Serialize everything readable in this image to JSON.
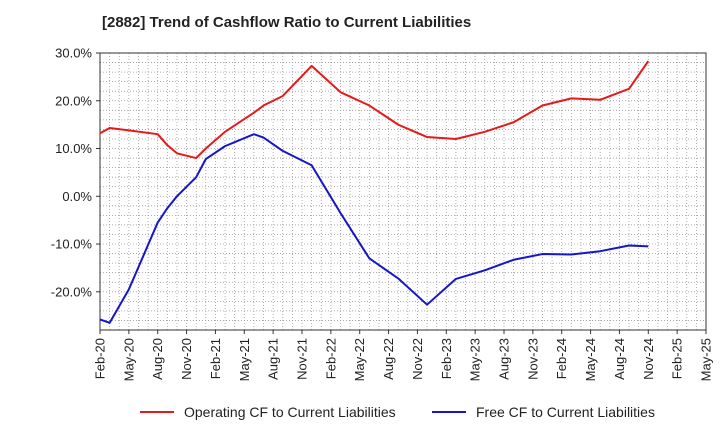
{
  "chart_data": {
    "type": "line",
    "title": "[2882]  Trend of Cashflow Ratio to Current Liabilities",
    "xlabel": "",
    "ylabel": "",
    "ylim": [
      -28,
      30
    ],
    "yticks": [
      30,
      20,
      10,
      0,
      -10,
      -20
    ],
    "ytick_labels": [
      "30.0%",
      "20.0%",
      "10.0%",
      "0.0%",
      "-10.0%",
      "-20.0%"
    ],
    "xtick_labels": [
      "Feb-20",
      "May-20",
      "Aug-20",
      "Nov-20",
      "Feb-21",
      "May-21",
      "Aug-21",
      "Nov-21",
      "Feb-22",
      "May-22",
      "Aug-22",
      "Nov-22",
      "Feb-23",
      "May-23",
      "Aug-23",
      "Nov-23",
      "Feb-24",
      "May-24",
      "Aug-24",
      "Nov-24",
      "Feb-25",
      "May-25"
    ],
    "grid": true,
    "legend_position": "bottom",
    "series": [
      {
        "name": "Operating CF to Current Liabilities",
        "color": "#e41a1c",
        "points": [
          [
            "Feb-20",
            13.2
          ],
          [
            "Mar-20",
            14.3
          ],
          [
            "May-20",
            13.8
          ],
          [
            "Aug-20",
            13.0
          ],
          [
            "Sep-20",
            10.7
          ],
          [
            "Oct-20",
            9.0
          ],
          [
            "Dec-20",
            8.0
          ],
          [
            "Jan-21",
            10.0
          ],
          [
            "Mar-21",
            13.5
          ],
          [
            "Jun-21",
            17.5
          ],
          [
            "Jul-21",
            19.0
          ],
          [
            "Sep-21",
            21.0
          ],
          [
            "Dec-21",
            27.3
          ],
          [
            "Mar-22",
            21.8
          ],
          [
            "Jun-22",
            19.0
          ],
          [
            "Sep-22",
            15.0
          ],
          [
            "Dec-22",
            12.4
          ],
          [
            "Mar-23",
            12.0
          ],
          [
            "Jun-23",
            13.5
          ],
          [
            "Sep-23",
            15.5
          ],
          [
            "Dec-23",
            19.0
          ],
          [
            "Mar-24",
            20.5
          ],
          [
            "Jun-24",
            20.2
          ],
          [
            "Sep-24",
            22.5
          ],
          [
            "Nov-24",
            28.3
          ]
        ]
      },
      {
        "name": "Free CF to Current Liabilities",
        "color": "#1515cc",
        "points": [
          [
            "Feb-20",
            -25.8
          ],
          [
            "Mar-20",
            -26.5
          ],
          [
            "May-20",
            -19.5
          ],
          [
            "Aug-20",
            -5.5
          ],
          [
            "Sep-20",
            -2.5
          ],
          [
            "Oct-20",
            0.0
          ],
          [
            "Dec-20",
            4.0
          ],
          [
            "Jan-21",
            7.8
          ],
          [
            "Mar-21",
            10.5
          ],
          [
            "Jun-21",
            13.0
          ],
          [
            "Jul-21",
            12.3
          ],
          [
            "Sep-21",
            9.5
          ],
          [
            "Dec-21",
            6.5
          ],
          [
            "Mar-22",
            -3.5
          ],
          [
            "Jun-22",
            -13.0
          ],
          [
            "Sep-22",
            -17.2
          ],
          [
            "Dec-22",
            -22.7
          ],
          [
            "Mar-23",
            -17.3
          ],
          [
            "Jun-23",
            -15.5
          ],
          [
            "Sep-23",
            -13.3
          ],
          [
            "Dec-23",
            -12.1
          ],
          [
            "Mar-24",
            -12.2
          ],
          [
            "Jun-24",
            -11.5
          ],
          [
            "Sep-24",
            -10.3
          ],
          [
            "Nov-24",
            -10.5
          ]
        ]
      }
    ]
  }
}
